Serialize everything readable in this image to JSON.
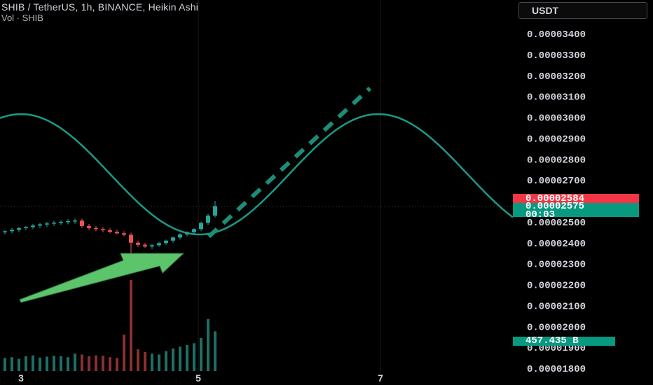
{
  "header": {
    "symbol_line": "SHIB / TetherUS, 1h, BINANCE, Heikin Ashi",
    "volume_line": "Vol · SHIB",
    "currency_button": "USDT"
  },
  "price_axis": {
    "labels": [
      "0.00003400",
      "0.00003300",
      "0.00003200",
      "0.00003100",
      "0.00003000",
      "0.00002900",
      "0.00002800",
      "0.00002700",
      "0.00002500",
      "0.00002400",
      "0.00002300",
      "0.00002200",
      "0.00002100",
      "0.00002000",
      "0.00001900",
      "0.00001800"
    ],
    "values": [
      3.4e-05,
      3.3e-05,
      3.2e-05,
      3.1e-05,
      3e-05,
      2.9e-05,
      2.8e-05,
      2.7e-05,
      2.5e-05,
      2.4e-05,
      2.3e-05,
      2.2e-05,
      2.1e-05,
      2e-05,
      1.9e-05,
      1.8e-05
    ],
    "last_price_tag": "0.00002584",
    "close_price_tag": "0.00002575",
    "countdown": "00:03",
    "volume_tag": "457.435 B"
  },
  "time_axis": {
    "labels": [
      "3",
      "5",
      "7"
    ]
  },
  "colors": {
    "background": "#000000",
    "up": "#26a69a",
    "down": "#ef5350",
    "sine": "#1a9a85",
    "arrow": "#5cc46a",
    "dash": "#1d8c78",
    "last_tag": "#f23645",
    "close_tag": "#089981"
  },
  "chart_data": {
    "type": "candlestick",
    "series": [
      {
        "name": "SHIB / TetherUS, 1h, BINANCE, Heikin Ashi"
      },
      {
        "name": "Vol · SHIB"
      }
    ],
    "ylim": [
      1.78e-05,
      3.53e-05
    ],
    "candles": [
      [
        2.45e-05,
        2.46e-05,
        2.44e-05,
        2.455e-05
      ],
      [
        2.455e-05,
        2.47e-05,
        2.445e-05,
        2.462e-05
      ],
      [
        2.462e-05,
        2.475e-05,
        2.45e-05,
        2.47e-05
      ],
      [
        2.47e-05,
        2.48e-05,
        2.46e-05,
        2.475e-05
      ],
      [
        2.475e-05,
        2.49e-05,
        2.465e-05,
        2.482e-05
      ],
      [
        2.482e-05,
        2.495e-05,
        2.47e-05,
        2.488e-05
      ],
      [
        2.488e-05,
        2.5e-05,
        2.475e-05,
        2.492e-05
      ],
      [
        2.492e-05,
        2.505e-05,
        2.48e-05,
        2.496e-05
      ],
      [
        2.496e-05,
        2.508e-05,
        2.485e-05,
        2.5e-05
      ],
      [
        2.5e-05,
        2.512e-05,
        2.488e-05,
        2.503e-05
      ],
      [
        2.503e-05,
        2.515e-05,
        2.49e-05,
        2.506e-05
      ],
      [
        2.506e-05,
        2.515e-05,
        2.47e-05,
        2.48e-05
      ],
      [
        2.48e-05,
        2.49e-05,
        2.46e-05,
        2.47e-05
      ],
      [
        2.47e-05,
        2.48e-05,
        2.455e-05,
        2.465e-05
      ],
      [
        2.465e-05,
        2.475e-05,
        2.45e-05,
        2.46e-05
      ],
      [
        2.46e-05,
        2.47e-05,
        2.445e-05,
        2.452e-05
      ],
      [
        2.452e-05,
        2.462e-05,
        2.44e-05,
        2.445e-05
      ],
      [
        2.445e-05,
        2.455e-05,
        2.43e-05,
        2.438e-05
      ],
      [
        2.438e-05,
        2.448e-05,
        2.3e-05,
        2.4e-05
      ],
      [
        2.4e-05,
        2.41e-05,
        2.38e-05,
        2.39e-05
      ],
      [
        2.39e-05,
        2.4e-05,
        2.375e-05,
        2.382e-05
      ],
      [
        2.382e-05,
        2.395e-05,
        2.37e-05,
        2.388e-05
      ],
      [
        2.388e-05,
        2.405e-05,
        2.38e-05,
        2.398e-05
      ],
      [
        2.398e-05,
        2.415e-05,
        2.39e-05,
        2.41e-05
      ],
      [
        2.41e-05,
        2.43e-05,
        2.4e-05,
        2.425e-05
      ],
      [
        2.425e-05,
        2.445e-05,
        2.415e-05,
        2.44e-05
      ],
      [
        2.44e-05,
        2.455e-05,
        2.43e-05,
        2.45e-05
      ],
      [
        2.45e-05,
        2.47e-05,
        2.44e-05,
        2.465e-05
      ],
      [
        2.465e-05,
        2.5e-05,
        2.455e-05,
        2.495e-05
      ],
      [
        2.495e-05,
        2.54e-05,
        2.485e-05,
        2.53e-05
      ],
      [
        2.53e-05,
        2.6e-05,
        2.52e-05,
        2.575e-05
      ]
    ],
    "volume_units": "B",
    "volume": [
      150,
      160,
      140,
      170,
      180,
      155,
      165,
      175,
      170,
      160,
      200,
      190,
      170,
      180,
      175,
      160,
      150,
      420,
      1050,
      250,
      220,
      200,
      190,
      230,
      260,
      280,
      300,
      320,
      380,
      600,
      457.435
    ]
  }
}
